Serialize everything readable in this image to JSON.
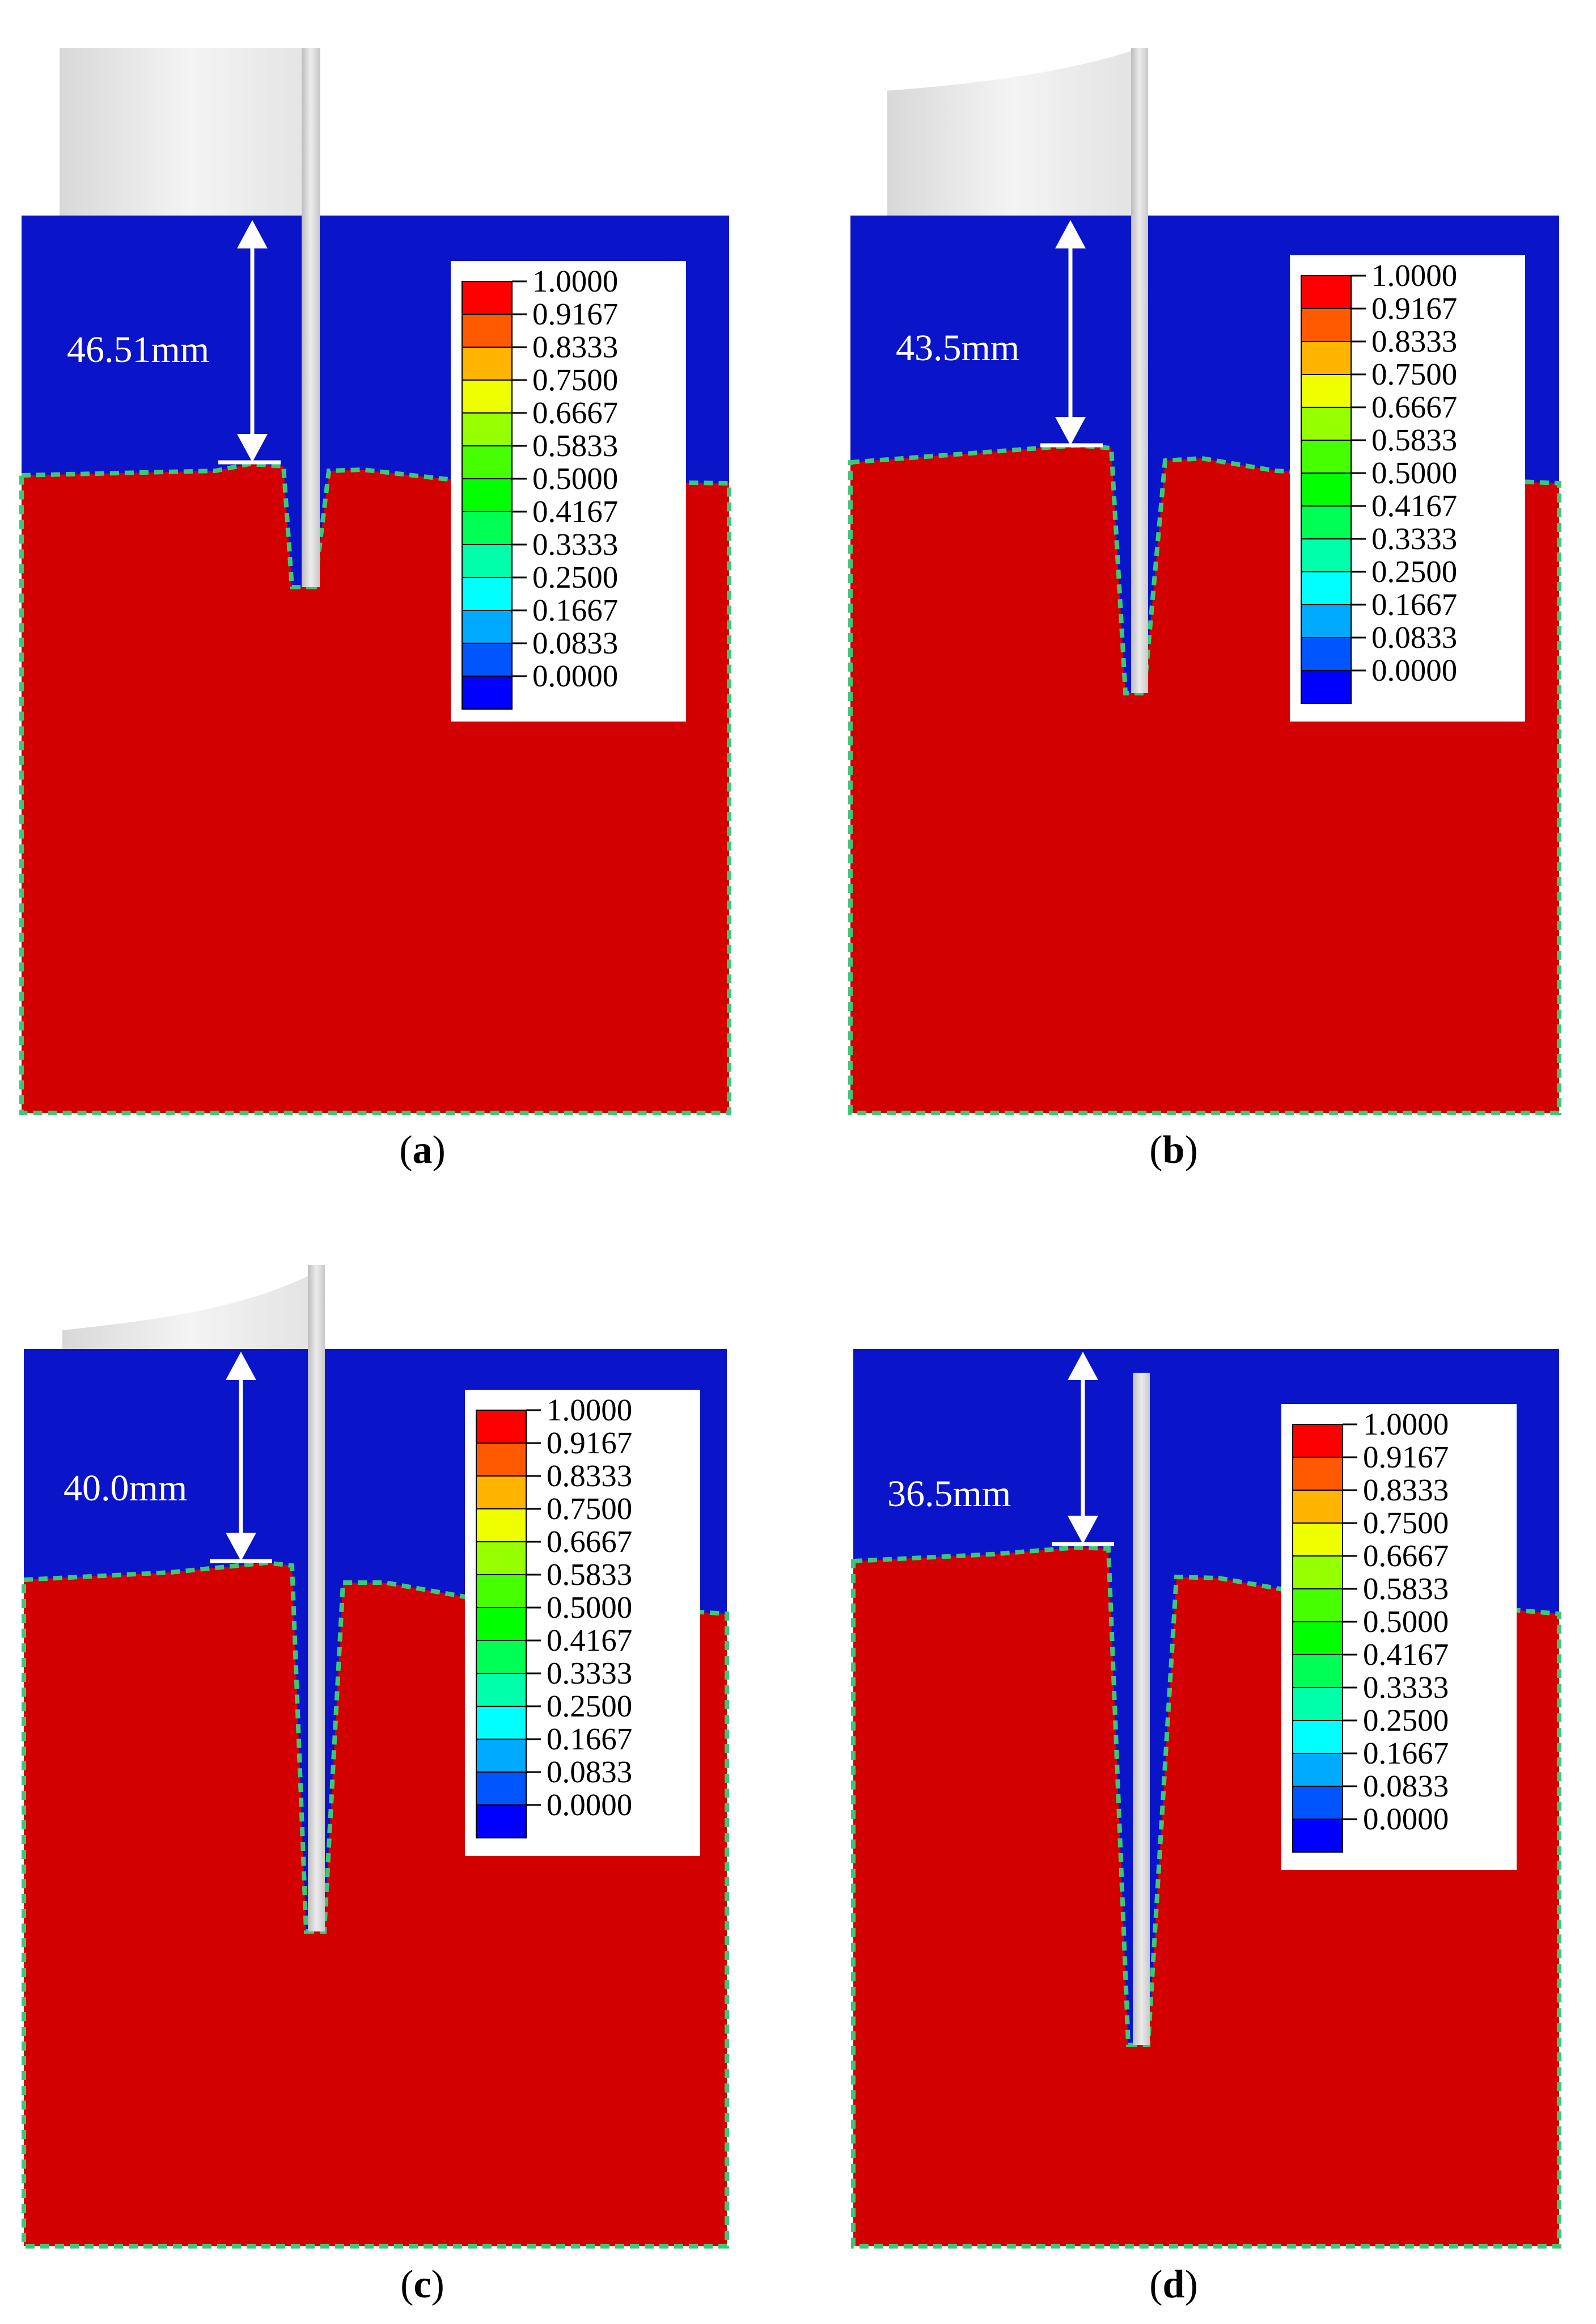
{
  "legend_values": [
    "1.0000",
    "0.9167",
    "0.8333",
    "0.7500",
    "0.6667",
    "0.5833",
    "0.5000",
    "0.4167",
    "0.3333",
    "0.2500",
    "0.1667",
    "0.0833",
    "0.0000"
  ],
  "legend_colors": [
    "#ff0000",
    "#ff5a00",
    "#ffb400",
    "#f0ff00",
    "#96ff00",
    "#46ff00",
    "#00ff00",
    "#00ff55",
    "#00ffaa",
    "#00ffff",
    "#00aaff",
    "#0055ff",
    "#0000ff"
  ],
  "colors": {
    "air": "#0a14c8",
    "fluid": "#d20000",
    "interface": "#3cc878",
    "rod": "#d6d6d6",
    "arrow": "#ffffff"
  },
  "panels": [
    {
      "id": "a",
      "measurement": "46.51mm",
      "caption_letter": "a"
    },
    {
      "id": "b",
      "measurement": "43.5mm",
      "caption_letter": "b"
    },
    {
      "id": "c",
      "measurement": "40.0mm",
      "caption_letter": "c"
    },
    {
      "id": "d",
      "measurement": "36.5mm",
      "caption_letter": "d"
    }
  ]
}
